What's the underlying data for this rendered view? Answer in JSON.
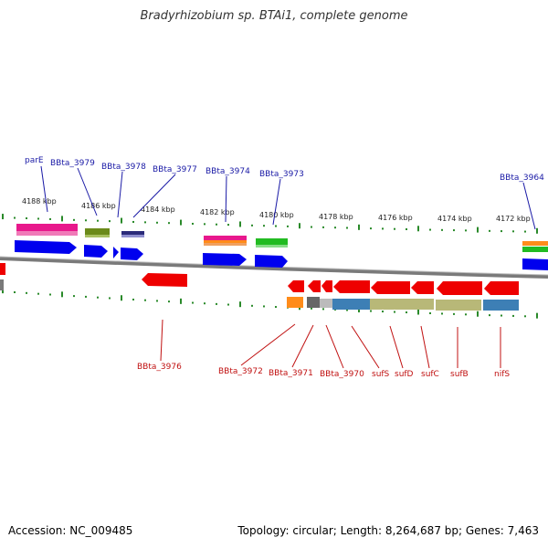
{
  "title": "Bradyrhizobium sp. BTAi1, complete genome",
  "accession": "Accession: NC_009485",
  "summary": "Topology: circular; Length: 8,264,687 bp; Genes: 7,463",
  "kbp_labels": [
    "4188 kbp",
    "4186 kbp",
    "4184 kbp",
    "4182 kbp",
    "4180 kbp",
    "4178 kbp",
    "4176 kbp",
    "4174 kbp",
    "4172 kbp"
  ],
  "genes_top": [
    "parE",
    "BBta_3979",
    "BBta_3978",
    "BBta_3977",
    "BBta_3974",
    "BBta_3973",
    "BBta_3964"
  ],
  "genes_bottom": [
    "BBta_3976",
    "BBta_3972",
    "BBta_3971",
    "BBta_3970",
    "sufS",
    "sufD",
    "sufC",
    "sufB",
    "nifS"
  ],
  "colors": {
    "forward_gene": "#0000ee",
    "reverse_gene": "#ee0000",
    "top_label": "#1a1aa6",
    "bottom_label": "#c01010",
    "tick": "#2a8a2a",
    "backbone": "#888888"
  }
}
